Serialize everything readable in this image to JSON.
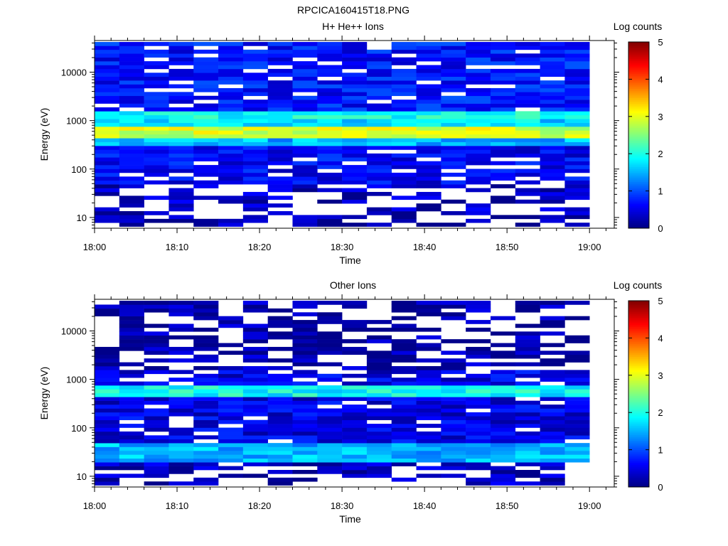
{
  "figure_title": "RPCICA160415T18.PNG",
  "chart_data": [
    {
      "type": "heatmap",
      "title": "H+ He++ Ions",
      "xlabel": "Time",
      "ylabel": "Energy (eV)",
      "x_ticks": [
        "18:00",
        "18:10",
        "18:20",
        "18:30",
        "18:40",
        "18:50",
        "19:00"
      ],
      "x_range": [
        "18:00",
        "19:03"
      ],
      "y_scale": "log",
      "y_ticks": [
        "10",
        "100",
        "1000",
        "10000"
      ],
      "y_range": [
        6,
        45000
      ],
      "time_bins": [
        "18:00",
        "18:03",
        "18:06",
        "18:09",
        "18:12",
        "18:15",
        "18:18",
        "18:21",
        "18:24",
        "18:27",
        "18:30",
        "18:33",
        "18:36",
        "18:39",
        "18:42",
        "18:45",
        "18:48",
        "18:51",
        "18:54",
        "18:57"
      ],
      "bands": [
        {
          "energy_lo": 400,
          "energy_hi": 800,
          "log_counts": 2.9
        },
        {
          "energy_lo": 800,
          "energy_hi": 1050,
          "log_counts": 1.7
        },
        {
          "energy_lo": 1050,
          "energy_hi": 1500,
          "log_counts": 1.9
        },
        {
          "energy_lo": 300,
          "energy_hi": 400,
          "log_counts": 1.5
        },
        {
          "energy_lo": 1500,
          "energy_hi": 45000,
          "log_counts": 0.7
        },
        {
          "energy_lo": 50,
          "energy_hi": 300,
          "log_counts": 0.6
        },
        {
          "energy_lo": 6,
          "energy_hi": 50,
          "log_counts": 0.3
        }
      ],
      "colorbar": {
        "label": "Log counts",
        "range": [
          0,
          5
        ],
        "ticks": [
          "0",
          "1",
          "2",
          "3",
          "4",
          "5"
        ]
      }
    },
    {
      "type": "heatmap",
      "title": "Other Ions",
      "xlabel": "Time",
      "ylabel": "Energy (eV)",
      "x_ticks": [
        "18:00",
        "18:10",
        "18:20",
        "18:30",
        "18:40",
        "18:50",
        "19:00"
      ],
      "x_range": [
        "18:00",
        "19:03"
      ],
      "y_scale": "log",
      "y_ticks": [
        "10",
        "100",
        "1000",
        "10000"
      ],
      "y_range": [
        6,
        45000
      ],
      "time_bins": [
        "18:00",
        "18:03",
        "18:06",
        "18:09",
        "18:12",
        "18:15",
        "18:18",
        "18:21",
        "18:24",
        "18:27",
        "18:30",
        "18:33",
        "18:36",
        "18:39",
        "18:42",
        "18:45",
        "18:48",
        "18:51",
        "18:54",
        "18:57"
      ],
      "bands": [
        {
          "energy_lo": 450,
          "energy_hi": 700,
          "log_counts": 1.9
        },
        {
          "energy_lo": 20,
          "energy_hi": 45,
          "log_counts": 1.5
        },
        {
          "energy_lo": 700,
          "energy_hi": 1500,
          "log_counts": 0.5
        },
        {
          "energy_lo": 45,
          "energy_hi": 450,
          "log_counts": 0.5
        },
        {
          "energy_lo": 6,
          "energy_hi": 20,
          "log_counts": 0.3
        },
        {
          "energy_lo": 1500,
          "energy_hi": 45000,
          "log_counts": 0.2
        }
      ],
      "colorbar": {
        "label": "Log counts",
        "range": [
          0,
          5
        ],
        "ticks": [
          "0",
          "1",
          "2",
          "3",
          "4",
          "5"
        ]
      }
    }
  ]
}
